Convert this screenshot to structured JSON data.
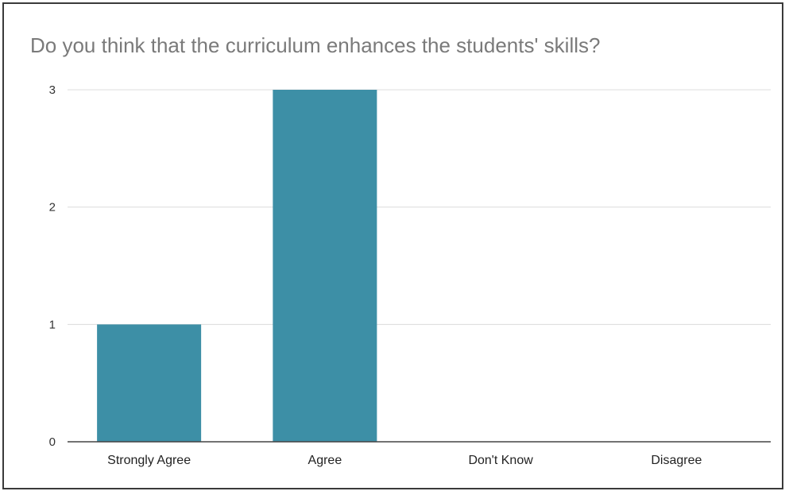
{
  "chart_data": {
    "type": "bar",
    "title": "Do you think that the curriculum enhances the students' skills?",
    "xlabel": "",
    "ylabel": "",
    "categories": [
      "Strongly Agree",
      "Agree",
      "Don't Know",
      "Disagree"
    ],
    "values": [
      1,
      3,
      0,
      0
    ],
    "ylim": [
      0,
      3
    ],
    "yticks": [
      0,
      1,
      2,
      3
    ],
    "grid": true,
    "legend": "none",
    "bar_color": "#3d8fa6",
    "grid_color": "#dcdcdc",
    "axis_color": "#444444"
  }
}
